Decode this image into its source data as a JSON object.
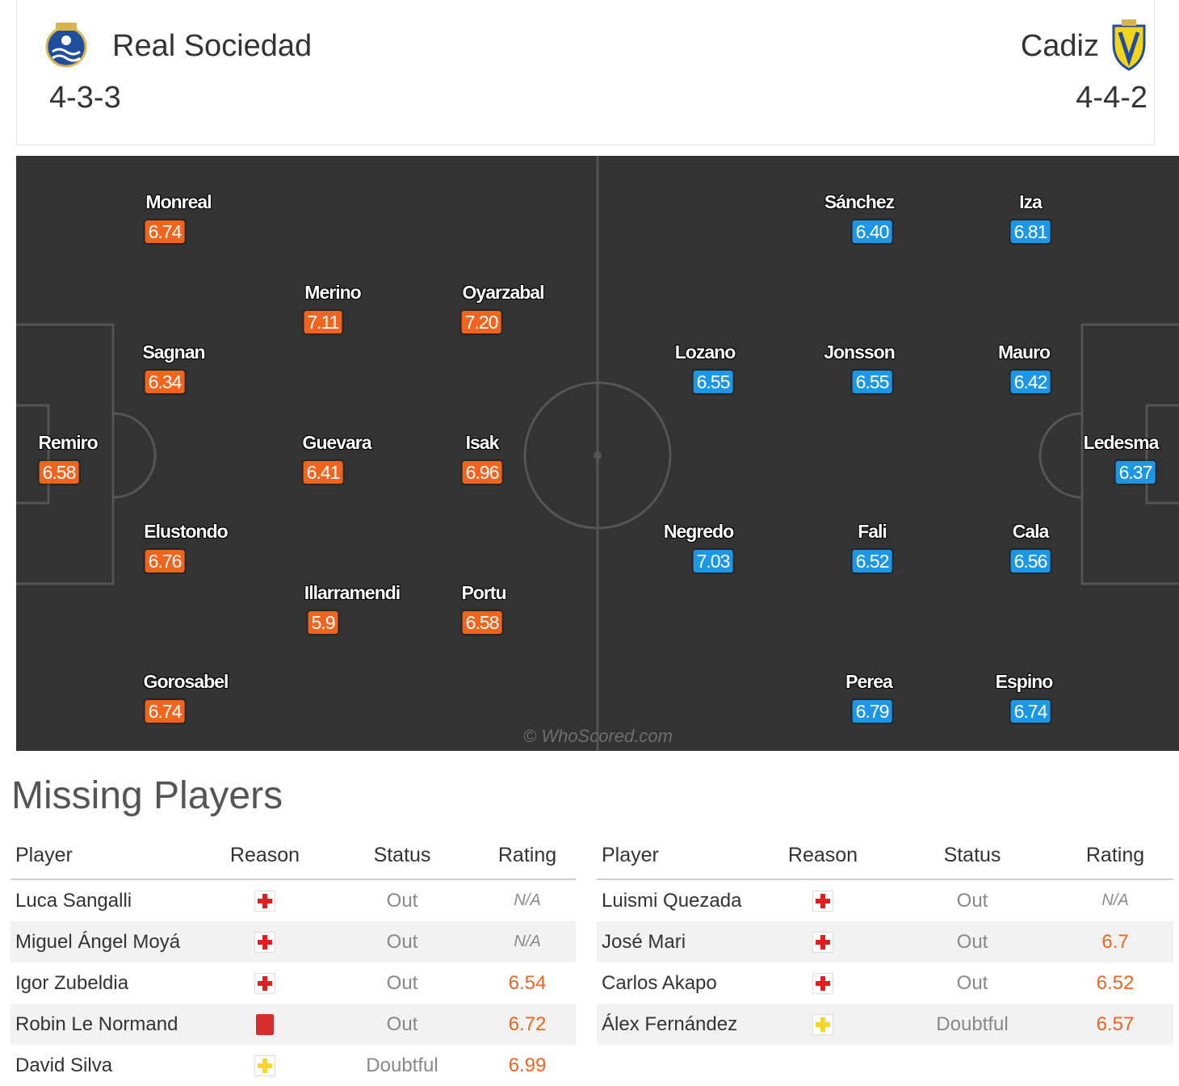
{
  "home": {
    "name": "Real Sociedad",
    "formation": "4-3-3",
    "color": "#f0641e",
    "players": [
      {
        "name": "Monreal",
        "rating": "6.74"
      },
      {
        "name": "Merino",
        "rating": "7.11"
      },
      {
        "name": "Oyarzabal",
        "rating": "7.20"
      },
      {
        "name": "Sagnan",
        "rating": "6.34"
      },
      {
        "name": "Remiro",
        "rating": "6.58"
      },
      {
        "name": "Guevara",
        "rating": "6.41"
      },
      {
        "name": "Isak",
        "rating": "6.96"
      },
      {
        "name": "Elustondo",
        "rating": "6.76"
      },
      {
        "name": "Illarramendi",
        "rating": "5.9"
      },
      {
        "name": "Portu",
        "rating": "6.58"
      },
      {
        "name": "Gorosabel",
        "rating": "6.74"
      }
    ]
  },
  "away": {
    "name": "Cadiz",
    "formation": "4-4-2",
    "color": "#1e96e6",
    "players": [
      {
        "name": "Sánchez",
        "rating": "6.40"
      },
      {
        "name": "Iza",
        "rating": "6.81"
      },
      {
        "name": "Lozano",
        "rating": "6.55"
      },
      {
        "name": "Jonsson",
        "rating": "6.55"
      },
      {
        "name": "Mauro",
        "rating": "6.42"
      },
      {
        "name": "Ledesma",
        "rating": "6.37"
      },
      {
        "name": "Negredo",
        "rating": "7.03"
      },
      {
        "name": "Fali",
        "rating": "6.52"
      },
      {
        "name": "Cala",
        "rating": "6.56"
      },
      {
        "name": "Perea",
        "rating": "6.79"
      },
      {
        "name": "Espino",
        "rating": "6.74"
      }
    ]
  },
  "pitch": {
    "watermark": "© WhoScored.com"
  },
  "missing": {
    "title": "Missing Players",
    "columns": [
      "Player",
      "Reason",
      "Status",
      "Rating"
    ],
    "home": [
      {
        "player": "Luca Sangalli",
        "reason": "injury-icon",
        "status": "Out",
        "rating": "N/A"
      },
      {
        "player": "Miguel Ángel Moyá",
        "reason": "injury-icon",
        "status": "Out",
        "rating": "N/A"
      },
      {
        "player": "Igor Zubeldia",
        "reason": "injury-icon",
        "status": "Out",
        "rating": "6.54"
      },
      {
        "player": "Robin Le Normand",
        "reason": "red-card-icon",
        "status": "Out",
        "rating": "6.72"
      },
      {
        "player": "David Silva",
        "reason": "doubtful-icon",
        "status": "Doubtful",
        "rating": "6.99"
      }
    ],
    "away": [
      {
        "player": "Luismi Quezada",
        "reason": "injury-icon",
        "status": "Out",
        "rating": "N/A"
      },
      {
        "player": "José Mari",
        "reason": "injury-icon",
        "status": "Out",
        "rating": "6.7"
      },
      {
        "player": "Carlos Akapo",
        "reason": "injury-icon",
        "status": "Out",
        "rating": "6.52"
      },
      {
        "player": "Álex Fernández",
        "reason": "doubtful-icon",
        "status": "Doubtful",
        "rating": "6.57"
      }
    ]
  }
}
